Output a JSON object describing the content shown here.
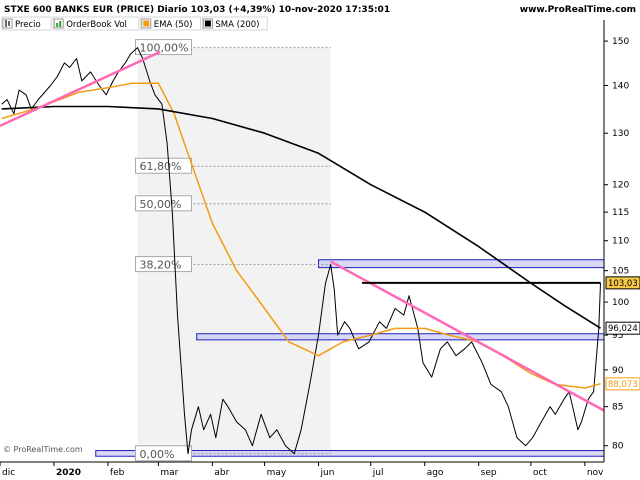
{
  "header": {
    "title": "STXE 600 BANKS EUR (PRICE) Diario 103,03 (+4,39%) 10-nov-2020 17:35:01",
    "site": "www.ProRealTime.com"
  },
  "legend": [
    {
      "label": "Precio",
      "color": "#000000",
      "icon": "candles-icon"
    },
    {
      "label": "OrderBook Vol",
      "color": "#2ca02c",
      "icon": "volume-bars-icon"
    },
    {
      "label": "EMA (50)",
      "color": "#f39c12",
      "icon": "color-swatch-icon"
    },
    {
      "label": "SMA (200)",
      "color": "#000000",
      "icon": "color-swatch-icon"
    }
  ],
  "footer": {
    "copyright": "© ProRealTime.com"
  },
  "colors": {
    "price": "#000000",
    "ema": "#f39c12",
    "sma": "#000000",
    "trendline": "#ff69b4",
    "support": "#2020c0",
    "fib_zone": "#f2f2f2"
  },
  "chart_data": {
    "type": "line",
    "y_scale": "log",
    "ylim": [
      78,
      155
    ],
    "y_ticks": [
      80,
      85,
      90,
      95,
      100,
      105,
      110,
      115,
      120,
      130,
      140,
      150
    ],
    "x_labels": [
      {
        "label": "dic",
        "date": "2019-12-01"
      },
      {
        "label": "2020",
        "date": "2020-01-01",
        "bold": true
      },
      {
        "label": "feb",
        "date": "2020-02-01"
      },
      {
        "label": "mar",
        "date": "2020-03-01"
      },
      {
        "label": "abr",
        "date": "2020-04-01"
      },
      {
        "label": "may",
        "date": "2020-05-01"
      },
      {
        "label": "jun",
        "date": "2020-06-01"
      },
      {
        "label": "jul",
        "date": "2020-07-01"
      },
      {
        "label": "ago",
        "date": "2020-08-01"
      },
      {
        "label": "sep",
        "date": "2020-09-01"
      },
      {
        "label": "oct",
        "date": "2020-10-01"
      },
      {
        "label": "nov",
        "date": "2020-11-01"
      }
    ],
    "xlim": [
      "2019-12-01",
      "2020-11-12"
    ],
    "price_labels": [
      {
        "value": 103.03,
        "label": "103,03",
        "color": "#000000",
        "fill": "#f7c948"
      },
      {
        "value": 96.024,
        "label": "96,024",
        "color": "#000000",
        "fill": "#ffffff"
      },
      {
        "value": 88.073,
        "label": "88,073",
        "color": "#f39c12",
        "fill": "#ffffff"
      }
    ],
    "fibonacci": {
      "start": "2020-02-18",
      "end": "2020-06-08",
      "levels": [
        {
          "label": "100,00%",
          "value": 148.5
        },
        {
          "label": "61,80%",
          "value": 123.5
        },
        {
          "label": "50,00%",
          "value": 116.5
        },
        {
          "label": "38,20%",
          "value": 106.0
        },
        {
          "label": "0,00%",
          "value": 79.0
        }
      ]
    },
    "horizontal_lines": [
      {
        "value": 103.03,
        "start": "2020-06-26",
        "end": "2020-11-10",
        "kind": "resistance"
      }
    ],
    "bands": [
      {
        "low": 105.5,
        "high": 106.8,
        "start": "2020-06-01",
        "end": "2020-11-12"
      },
      {
        "low": 94.3,
        "high": 95.2,
        "start": "2020-03-23",
        "end": "2020-11-12"
      },
      {
        "low": 78.7,
        "high": 79.4,
        "start": "2020-01-25",
        "end": "2020-11-12"
      }
    ],
    "trendlines": [
      {
        "from": {
          "date": "2019-12-01",
          "value": 131.5
        },
        "to": {
          "date": "2020-03-02",
          "value": 147.5
        }
      },
      {
        "from": {
          "date": "2020-06-08",
          "value": 106.5
        },
        "to": {
          "date": "2020-11-12",
          "value": 84.5
        }
      }
    ],
    "series": [
      {
        "name": "Precio",
        "points": [
          [
            "2019-12-02",
            136
          ],
          [
            "2019-12-05",
            137
          ],
          [
            "2019-12-09",
            134
          ],
          [
            "2019-12-12",
            139
          ],
          [
            "2019-12-16",
            138
          ],
          [
            "2019-12-19",
            135
          ],
          [
            "2019-12-23",
            137
          ],
          [
            "2019-12-30",
            140
          ],
          [
            "2020-01-03",
            142
          ],
          [
            "2020-01-07",
            145
          ],
          [
            "2020-01-10",
            144
          ],
          [
            "2020-01-14",
            146
          ],
          [
            "2020-01-17",
            141
          ],
          [
            "2020-01-22",
            143
          ],
          [
            "2020-01-27",
            140
          ],
          [
            "2020-01-31",
            138
          ],
          [
            "2020-02-04",
            141
          ],
          [
            "2020-02-07",
            143
          ],
          [
            "2020-02-11",
            145
          ],
          [
            "2020-02-14",
            147
          ],
          [
            "2020-02-18",
            148.5
          ],
          [
            "2020-02-21",
            146
          ],
          [
            "2020-02-25",
            141
          ],
          [
            "2020-02-28",
            138
          ],
          [
            "2020-03-03",
            136
          ],
          [
            "2020-03-06",
            128
          ],
          [
            "2020-03-09",
            115
          ],
          [
            "2020-03-12",
            98
          ],
          [
            "2020-03-16",
            84
          ],
          [
            "2020-03-18",
            79
          ],
          [
            "2020-03-20",
            82
          ],
          [
            "2020-03-24",
            85
          ],
          [
            "2020-03-27",
            82
          ],
          [
            "2020-03-31",
            84
          ],
          [
            "2020-04-03",
            81
          ],
          [
            "2020-04-07",
            86
          ],
          [
            "2020-04-10",
            85
          ],
          [
            "2020-04-15",
            83
          ],
          [
            "2020-04-20",
            82
          ],
          [
            "2020-04-24",
            80
          ],
          [
            "2020-04-29",
            84
          ],
          [
            "2020-05-04",
            81
          ],
          [
            "2020-05-08",
            82
          ],
          [
            "2020-05-13",
            80
          ],
          [
            "2020-05-18",
            79
          ],
          [
            "2020-05-22",
            82
          ],
          [
            "2020-05-27",
            88
          ],
          [
            "2020-06-01",
            95
          ],
          [
            "2020-06-05",
            103
          ],
          [
            "2020-06-08",
            106
          ],
          [
            "2020-06-10",
            102
          ],
          [
            "2020-06-12",
            95
          ],
          [
            "2020-06-16",
            97
          ],
          [
            "2020-06-19",
            96
          ],
          [
            "2020-06-24",
            93
          ],
          [
            "2020-06-30",
            94
          ],
          [
            "2020-07-06",
            97
          ],
          [
            "2020-07-10",
            96
          ],
          [
            "2020-07-15",
            99
          ],
          [
            "2020-07-20",
            98
          ],
          [
            "2020-07-23",
            101
          ],
          [
            "2020-07-28",
            96
          ],
          [
            "2020-07-31",
            91
          ],
          [
            "2020-08-05",
            89
          ],
          [
            "2020-08-10",
            93
          ],
          [
            "2020-08-14",
            94
          ],
          [
            "2020-08-19",
            92
          ],
          [
            "2020-08-24",
            93
          ],
          [
            "2020-08-28",
            94
          ],
          [
            "2020-09-03",
            91
          ],
          [
            "2020-09-08",
            88
          ],
          [
            "2020-09-14",
            87
          ],
          [
            "2020-09-18",
            85
          ],
          [
            "2020-09-23",
            81
          ],
          [
            "2020-09-28",
            80
          ],
          [
            "2020-10-02",
            81
          ],
          [
            "2020-10-07",
            83
          ],
          [
            "2020-10-12",
            85
          ],
          [
            "2020-10-15",
            84
          ],
          [
            "2020-10-20",
            86
          ],
          [
            "2020-10-23",
            87
          ],
          [
            "2020-10-28",
            82
          ],
          [
            "2020-10-30",
            83
          ],
          [
            "2020-11-03",
            86
          ],
          [
            "2020-11-06",
            87
          ],
          [
            "2020-11-09",
            96
          ],
          [
            "2020-11-10",
            103.03
          ]
        ]
      },
      {
        "name": "EMA (50)",
        "points": [
          [
            "2019-12-02",
            133
          ],
          [
            "2019-12-16",
            134.5
          ],
          [
            "2020-01-01",
            136.5
          ],
          [
            "2020-01-15",
            138.5
          ],
          [
            "2020-02-01",
            139.5
          ],
          [
            "2020-02-15",
            140.5
          ],
          [
            "2020-03-01",
            140.5
          ],
          [
            "2020-03-10",
            134
          ],
          [
            "2020-03-20",
            124
          ],
          [
            "2020-04-01",
            113
          ],
          [
            "2020-04-15",
            105
          ],
          [
            "2020-05-01",
            99
          ],
          [
            "2020-05-15",
            94
          ],
          [
            "2020-06-01",
            92
          ],
          [
            "2020-06-15",
            94
          ],
          [
            "2020-07-01",
            95
          ],
          [
            "2020-07-15",
            96
          ],
          [
            "2020-08-01",
            96
          ],
          [
            "2020-08-15",
            95
          ],
          [
            "2020-09-01",
            94
          ],
          [
            "2020-09-15",
            92
          ],
          [
            "2020-10-01",
            89.5
          ],
          [
            "2020-10-15",
            88
          ],
          [
            "2020-11-01",
            87.5
          ],
          [
            "2020-11-10",
            88.073
          ]
        ]
      },
      {
        "name": "SMA (200)",
        "points": [
          [
            "2019-12-02",
            135
          ],
          [
            "2020-01-01",
            135.5
          ],
          [
            "2020-02-01",
            135.5
          ],
          [
            "2020-03-01",
            135
          ],
          [
            "2020-04-01",
            133
          ],
          [
            "2020-05-01",
            130
          ],
          [
            "2020-06-01",
            126
          ],
          [
            "2020-07-01",
            120
          ],
          [
            "2020-08-01",
            115
          ],
          [
            "2020-09-01",
            109
          ],
          [
            "2020-10-01",
            103
          ],
          [
            "2020-10-20",
            99.5
          ],
          [
            "2020-11-10",
            96.024
          ]
        ]
      }
    ]
  }
}
